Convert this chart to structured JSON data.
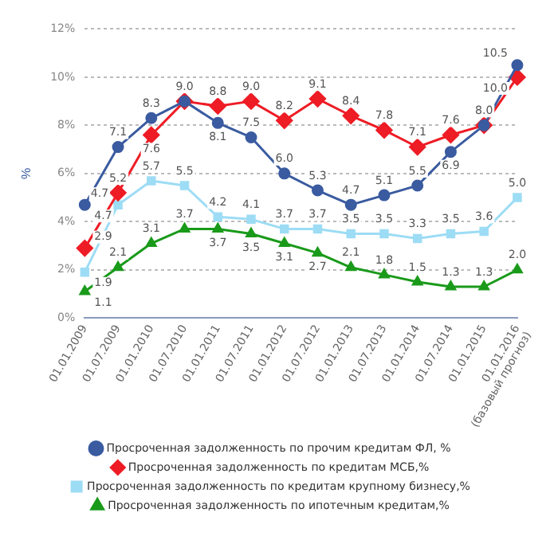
{
  "chart_data": {
    "type": "line",
    "ylabel": "%",
    "categories": [
      "01.01.2009",
      "01.07.2009",
      "01.01.2010",
      "01.07.2010",
      "01.01.2011",
      "01.07.2011",
      "01.01.2012",
      "01.07.2012",
      "01.01.2013",
      "01.07.2013",
      "01.01.2014",
      "01.07.2014",
      "01.01.2015",
      "01.01.2016 (базовый прогноз)"
    ],
    "series": [
      {
        "name": "Просроченная задолженность по прочим кредитам ФЛ, %",
        "color": "#3a5ba0",
        "marker": "circle",
        "values": [
          4.7,
          7.1,
          8.3,
          9.0,
          8.1,
          7.5,
          6.0,
          5.3,
          4.7,
          5.1,
          5.5,
          6.9,
          8.0,
          10.5
        ],
        "value_labels": [
          "4.7",
          "7.1",
          "8.3",
          "9.0",
          "8.1",
          "7.5",
          "6.0",
          "5.3",
          "4.7",
          "5.1",
          "5.5",
          "6.9",
          "8.0",
          "10.5"
        ]
      },
      {
        "name": "Просроченная задолженность по кредитам МСБ,%",
        "color": "#ee1c25",
        "marker": "diamond",
        "values": [
          2.9,
          5.2,
          7.6,
          9.0,
          8.8,
          9.0,
          8.2,
          9.1,
          8.4,
          7.8,
          7.1,
          7.6,
          8.0,
          10.0
        ],
        "value_labels": [
          "2.9",
          "5.2",
          "7.6",
          null,
          "8.8",
          "9.0",
          "8.2",
          "9.1",
          "8.4",
          "7.8",
          "7.1",
          "7.6",
          null,
          "10.0"
        ]
      },
      {
        "name": "Просроченная задолженность по кредитам крупному бизнесу,%",
        "color": "#9ddcf5",
        "marker": "square",
        "values": [
          1.9,
          4.7,
          5.7,
          5.5,
          4.2,
          4.1,
          3.7,
          3.7,
          3.5,
          3.5,
          3.3,
          3.5,
          3.6,
          5.0
        ],
        "value_labels": [
          "1.9",
          "4.7",
          "5.7",
          "5.5",
          "4.2",
          "4.1",
          "3.7",
          "3.7",
          "3.5",
          "3.5",
          "3.3",
          "3.5",
          "3.6",
          "5.0"
        ]
      },
      {
        "name": "Просроченная задолженность по ипотечным кредитам,%",
        "color": "#1a9a1a",
        "marker": "triangle",
        "values": [
          1.1,
          2.1,
          3.1,
          3.7,
          3.7,
          3.5,
          3.1,
          2.7,
          2.1,
          1.8,
          1.5,
          1.3,
          1.3,
          2.0
        ],
        "value_labels": [
          "1.1",
          "2.1",
          "3.1",
          "3.7",
          "3.7",
          "3.5",
          "3.1",
          "2.7",
          "2.1",
          "1.8",
          "1.5",
          "1.3",
          "1.3",
          "2.0"
        ]
      }
    ],
    "ylim": [
      0,
      12
    ],
    "yticks": [
      {
        "value": 0,
        "label": "0%"
      },
      {
        "value": 2,
        "label": "2%"
      },
      {
        "value": 4,
        "label": "4%"
      },
      {
        "value": 6,
        "label": "6%"
      },
      {
        "value": 8,
        "label": "8%"
      },
      {
        "value": 10,
        "label": "10%"
      },
      {
        "value": 12,
        "label": "12%"
      }
    ],
    "grid": "y",
    "legend": "bottom",
    "line_style": "solid"
  }
}
